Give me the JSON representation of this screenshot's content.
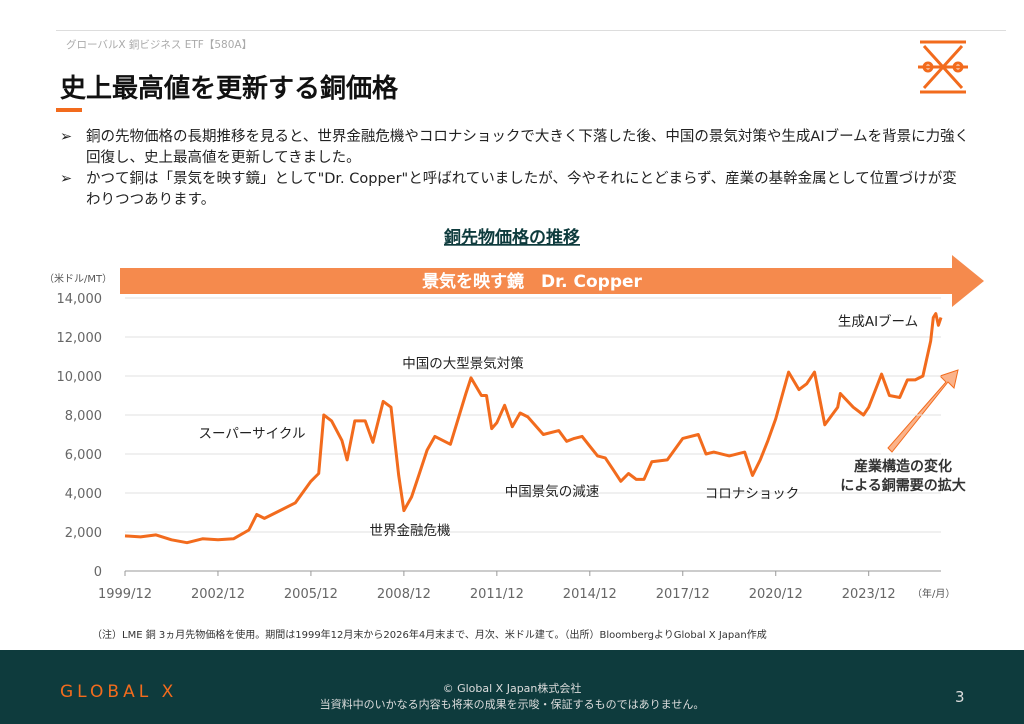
{
  "header": {
    "breadcrumb": "グローバルX 銅ビジネス ETF【580A】",
    "title": "史上最高値を更新する銅価格"
  },
  "bullets": [
    "銅の先物価格の長期推移を見ると、世界金融危機やコロナショックで大きく下落した後、中国の景気対策や生成AIブームを背景に力強く回復し、史上最高値を更新してきました。",
    "かつて銅は「景気を映す鏡」として\"Dr. Copper\"と呼ばれていましたが、今やそれにとどまらず、産業の基幹金属として位置づけが変わりつつあります。"
  ],
  "chart_data": {
    "type": "line",
    "title": "銅先物価格の推移",
    "banner": "景気を映す鏡　Dr. Copper",
    "y_label": "（米ドル/MT）",
    "x_label": "（年/月）",
    "color": "#f26b1d",
    "x": [
      "1999/12",
      "2000/06",
      "2000/12",
      "2001/06",
      "2001/12",
      "2002/06",
      "2002/12",
      "2003/06",
      "2003/12",
      "2004/03",
      "2004/06",
      "2004/12",
      "2005/06",
      "2005/12",
      "2006/03",
      "2006/05",
      "2006/08",
      "2006/12",
      "2007/02",
      "2007/05",
      "2007/09",
      "2007/12",
      "2008/04",
      "2008/07",
      "2008/10",
      "2008/12",
      "2009/03",
      "2009/06",
      "2009/09",
      "2009/12",
      "2010/06",
      "2010/12",
      "2011/02",
      "2011/06",
      "2011/08",
      "2011/10",
      "2011/12",
      "2012/03",
      "2012/06",
      "2012/09",
      "2012/12",
      "2013/06",
      "2013/12",
      "2014/03",
      "2014/06",
      "2014/09",
      "2014/12",
      "2015/03",
      "2015/06",
      "2015/09",
      "2015/12",
      "2016/03",
      "2016/06",
      "2016/09",
      "2016/12",
      "2017/06",
      "2017/12",
      "2018/06",
      "2018/09",
      "2018/12",
      "2019/06",
      "2019/12",
      "2020/03",
      "2020/06",
      "2020/09",
      "2020/12",
      "2021/05",
      "2021/09",
      "2021/12",
      "2022/03",
      "2022/07",
      "2022/12",
      "2023/01",
      "2023/06",
      "2023/10",
      "2023/12",
      "2024/05",
      "2024/08",
      "2024/12",
      "2025/03",
      "2025/06",
      "2025/09",
      "2025/12",
      "2026/01",
      "2026/02",
      "2026/03",
      "2026/04"
    ],
    "values": [
      1800,
      1750,
      1850,
      1600,
      1450,
      1650,
      1600,
      1650,
      2100,
      2900,
      2700,
      3100,
      3500,
      4600,
      5000,
      8000,
      7700,
      6700,
      5700,
      7700,
      7700,
      6600,
      8700,
      8400,
      4900,
      3100,
      3800,
      5000,
      6200,
      6900,
      6500,
      9100,
      9900,
      9000,
      9000,
      7300,
      7600,
      8500,
      7400,
      8100,
      7900,
      7000,
      7200,
      6650,
      6800,
      6900,
      6400,
      5900,
      5800,
      5200,
      4600,
      5000,
      4700,
      4700,
      5600,
      5700,
      6800,
      7000,
      6000,
      6100,
      5900,
      6100,
      4900,
      5700,
      6700,
      7800,
      10200,
      9300,
      9600,
      10200,
      7500,
      8400,
      9100,
      8400,
      8000,
      8400,
      10100,
      9000,
      8900,
      9800,
      9800,
      10000,
      11800,
      13000,
      13200,
      12600,
      13000
    ],
    "xlim": [
      "1999/12",
      "2026/04"
    ],
    "xticks": [
      "1999/12",
      "2002/12",
      "2005/12",
      "2008/12",
      "2011/12",
      "2014/12",
      "2017/12",
      "2020/12",
      "2023/12"
    ],
    "ylim": [
      0,
      14000
    ],
    "yticks": [
      0,
      {
        "value": 2000,
        "label": "2,000"
      },
      {
        "value": 4000,
        "label": "4,000"
      },
      {
        "value": 6000,
        "label": "6,000"
      },
      {
        "value": 8000,
        "label": "8,000"
      },
      {
        "value": 10000,
        "label": "10,000"
      },
      {
        "value": 12000,
        "label": "12,000"
      },
      {
        "value": 14000,
        "label": "14,000"
      }
    ],
    "grid": true,
    "annotations": [
      "スーパーサイクル",
      "世界金融危機",
      "中国の大型景気対策",
      "中国景気の減速",
      "コロナショック",
      "生成AIブーム",
      [
        "産業構造の変化",
        "による銅需要の拡大"
      ]
    ],
    "note": "（注）LME 銅 3ヵ月先物価格を使用。期間は1999年12月末から2026年4月末まで、月次、米ドル建て。（出所）BloombergよりGlobal X Japan作成"
  },
  "footer": {
    "logo": "GLOBAL X",
    "copyright": "© Global X Japan株式会社",
    "disclaimer": "当資料中のいかなる内容も将来の成果を示唆・保証するものではありません。",
    "page": "3"
  }
}
